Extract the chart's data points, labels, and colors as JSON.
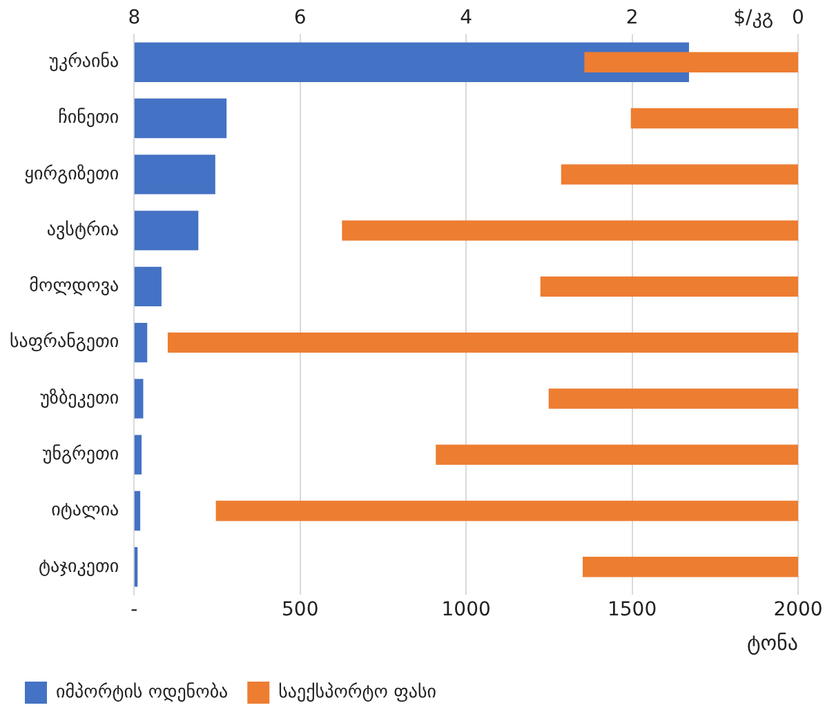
{
  "chart_data": {
    "type": "bar",
    "orientation": "horizontal",
    "categories": [
      "უკრაინა",
      "ჩინეთი",
      "ყირგიზეთი",
      "ავსტრია",
      "მოლდოვა",
      "საფრანგეთი",
      "უზბეკეთი",
      "უნგრეთი",
      "იტალია",
      "ტაჯიკეთი"
    ],
    "series": [
      {
        "name": "იმპორტის ოდენობა",
        "color": "#4472c4",
        "values": [
          1670,
          277,
          243,
          192,
          81,
          38,
          26,
          21,
          17,
          9
        ]
      },
      {
        "name": "საექსპორტო ფასი",
        "color": "#ed7d31",
        "axis": "x2",
        "values": [
          2.57,
          2.01,
          2.85,
          5.49,
          3.1,
          7.59,
          3.0,
          4.36,
          7.01,
          2.59
        ]
      }
    ],
    "xlabel": "ტონა",
    "xlim": [
      0,
      2000
    ],
    "xticks": [
      {
        "value": 0,
        "label": "-"
      },
      500,
      1000,
      1500,
      2000
    ],
    "x2label": "$/კგ",
    "x2lim": [
      8,
      0
    ],
    "x2ticks": [
      8,
      6,
      4,
      2,
      0
    ],
    "grid": "x",
    "legend": "bottom"
  }
}
